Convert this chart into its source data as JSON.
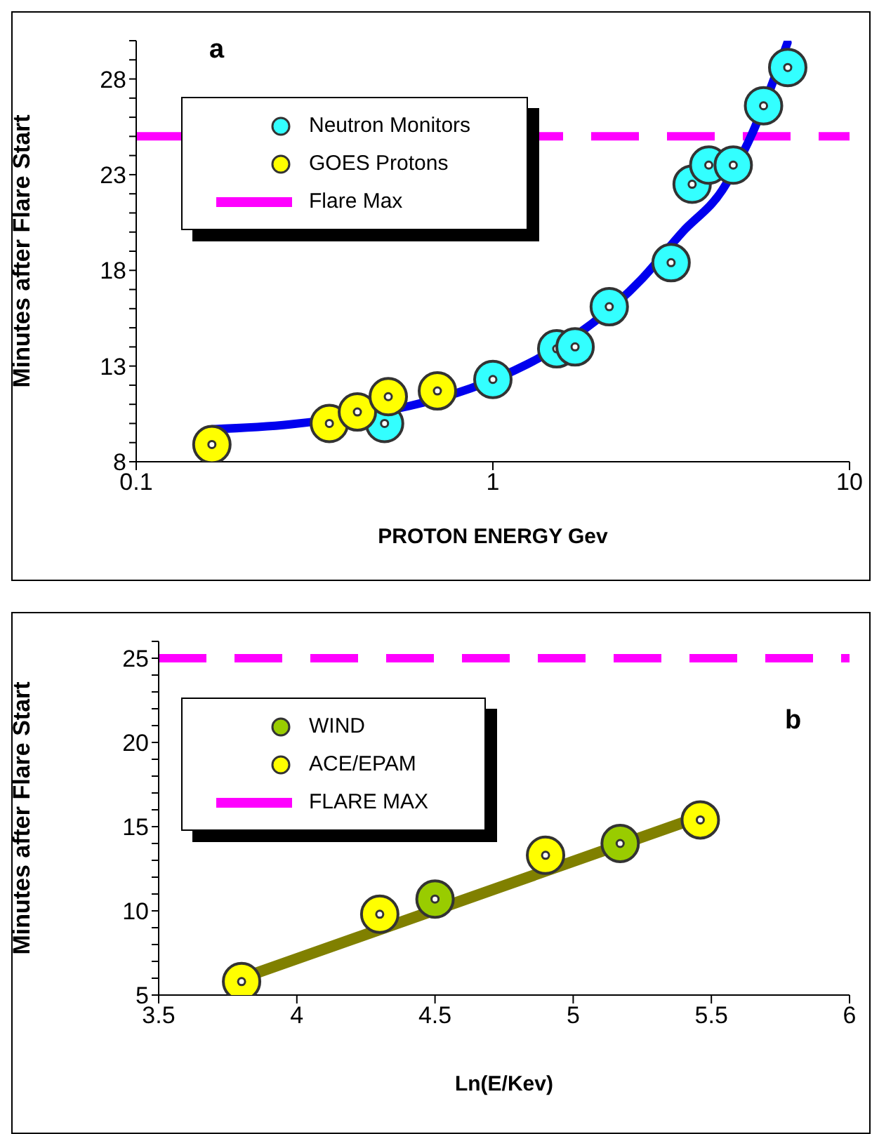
{
  "chart_data": [
    {
      "type": "scatter",
      "xlabel": "PROTON  ENERGY   Gev",
      "ylabel": "Minutes  after  Flare Start",
      "annotations": [
        "a"
      ],
      "log": "x",
      "xlim": [
        0.1,
        10
      ],
      "xticks": [
        0.1,
        1,
        10
      ],
      "ylim": [
        8,
        30
      ],
      "yticks": [
        8,
        {
          "value": 9,
          "label": null
        },
        {
          "value": 10,
          "label": null
        },
        {
          "value": 11,
          "label": null
        },
        {
          "value": 12,
          "label": null
        },
        13,
        {
          "value": 14,
          "label": null
        },
        {
          "value": 15,
          "label": null
        },
        {
          "value": 16,
          "label": null
        },
        {
          "value": 17,
          "label": null
        },
        18,
        {
          "value": 19,
          "label": null
        },
        {
          "value": 20,
          "label": null
        },
        {
          "value": 21,
          "label": null
        },
        {
          "value": 22,
          "label": null
        },
        23,
        {
          "value": 24,
          "label": null
        },
        {
          "value": 25,
          "label": null
        },
        {
          "value": 26,
          "label": null
        },
        {
          "value": 27,
          "label": null
        },
        28,
        {
          "value": 29,
          "label": null
        },
        {
          "value": 30,
          "label": null
        }
      ],
      "legend": "top left",
      "series": [
        {
          "type": "line",
          "color": "#0000ee",
          "x": [
            0.163,
            0.27,
            1.25,
            2.6,
            3.4,
            4.4,
            5.2,
            6.7
          ],
          "values": [
            9.7,
            9.95,
            13.1,
            17.5,
            20.0,
            22.2,
            24.7,
            29.9
          ]
        },
        {
          "name": "Neutron Monitors",
          "color": "#33ffff",
          "x": [
            0.497,
            1.0,
            1.51,
            1.7,
            2.12,
            3.16,
            3.62,
            4.03,
            4.72,
            5.74,
            6.71
          ],
          "values": [
            10.0,
            12.3,
            13.9,
            14.0,
            16.1,
            18.4,
            22.5,
            23.5,
            23.5,
            26.6,
            28.6
          ],
          "marker": "circle"
        },
        {
          "name": "GOES Protons",
          "color": "#ffff00",
          "x": [
            0.163,
            0.348,
            0.417,
            0.509,
            0.699
          ],
          "values": [
            8.9,
            10.0,
            10.6,
            11.4,
            11.7
          ],
          "marker": "circle"
        }
      ],
      "ref_lines": [
        {
          "axis": "y",
          "value": 25,
          "label": "Flare Max",
          "color": "#ff00ff",
          "line_style": "dashed"
        }
      ]
    },
    {
      "type": "scatter",
      "xlabel": "Ln(E/Kev)",
      "ylabel": "Minutes after Flare Start",
      "annotations": [
        "b"
      ],
      "xlim": [
        3.5,
        6
      ],
      "xticks": [
        3.5,
        4,
        4.5,
        5,
        5.5,
        6
      ],
      "ylim": [
        5,
        26
      ],
      "yticks": [
        5,
        {
          "value": 6,
          "label": null
        },
        {
          "value": 7,
          "label": null
        },
        {
          "value": 8,
          "label": null
        },
        {
          "value": 9,
          "label": null
        },
        10,
        {
          "value": 11,
          "label": null
        },
        {
          "value": 12,
          "label": null
        },
        {
          "value": 13,
          "label": null
        },
        {
          "value": 14,
          "label": null
        },
        15,
        {
          "value": 16,
          "label": null
        },
        {
          "value": 17,
          "label": null
        },
        {
          "value": 18,
          "label": null
        },
        {
          "value": 19,
          "label": null
        },
        20,
        {
          "value": 21,
          "label": null
        },
        {
          "value": 22,
          "label": null
        },
        {
          "value": 23,
          "label": null
        },
        {
          "value": 24,
          "label": null
        },
        25,
        {
          "value": 26,
          "label": null
        }
      ],
      "legend": "top left",
      "series": [
        {
          "type": "line",
          "color": "#808000",
          "x": [
            3.8,
            5.46
          ],
          "values": [
            6.0,
            15.6
          ]
        },
        {
          "name": "WIND",
          "color": "#99cc00",
          "x": [
            4.5,
            5.17
          ],
          "values": [
            10.7,
            14.0
          ],
          "marker": "circle"
        },
        {
          "name": "ACE/EPAM",
          "color": "#ffff00",
          "x": [
            3.8,
            4.3,
            4.9,
            5.46
          ],
          "values": [
            5.8,
            9.8,
            13.3,
            15.4
          ],
          "marker": "circle"
        }
      ],
      "ref_lines": [
        {
          "axis": "y",
          "value": 25,
          "label": "FLARE MAX",
          "color": "#ff00ff",
          "line_style": "dashed"
        }
      ]
    }
  ]
}
